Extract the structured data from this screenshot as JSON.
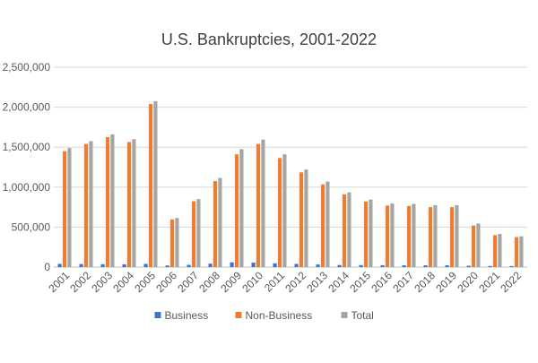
{
  "chart_data": {
    "type": "bar",
    "title": "U.S. Bankruptcies, 2001-2022",
    "xlabel": "",
    "ylabel": "",
    "ylim": [
      0,
      2500000
    ],
    "yticks": [
      "0",
      "500,000",
      "1,000,000",
      "1,500,000",
      "2,000,000",
      "2,500,000"
    ],
    "ytick_values": [
      0,
      500000,
      1000000,
      1500000,
      2000000,
      2500000
    ],
    "grid": true,
    "legend": "bottom",
    "categories": [
      "2001",
      "2002",
      "2003",
      "2004",
      "2005",
      "2006",
      "2007",
      "2008",
      "2009",
      "2010",
      "2011",
      "2012",
      "2013",
      "2014",
      "2015",
      "2016",
      "2017",
      "2018",
      "2019",
      "2020",
      "2021",
      "2022"
    ],
    "series": [
      {
        "name": "Business",
        "color": "#4472C4",
        "values": [
          40000,
          38000,
          36000,
          35000,
          40000,
          20000,
          28000,
          43000,
          60000,
          56000,
          47000,
          40000,
          33000,
          26000,
          25000,
          24000,
          23000,
          22000,
          22000,
          17000,
          14000,
          13000
        ]
      },
      {
        "name": "Non-Business",
        "color": "#ED7D31",
        "values": [
          1450000,
          1540000,
          1625000,
          1565000,
          2040000,
          597000,
          823000,
          1075000,
          1410000,
          1540000,
          1365000,
          1185000,
          1035000,
          910000,
          820000,
          770000,
          765000,
          750000,
          750000,
          520000,
          400000,
          375000
        ]
      },
      {
        "name": "Total",
        "color": "#A5A5A5",
        "values": [
          1490000,
          1575000,
          1660000,
          1600000,
          2075000,
          615000,
          850000,
          1115000,
          1475000,
          1595000,
          1410000,
          1220000,
          1070000,
          935000,
          845000,
          795000,
          790000,
          775000,
          775000,
          545000,
          415000,
          385000
        ]
      }
    ]
  }
}
